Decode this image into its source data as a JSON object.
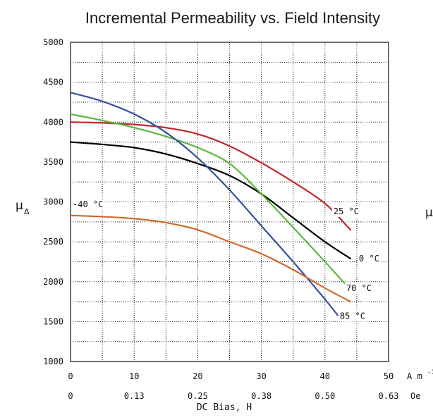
{
  "chart_data": {
    "type": "line",
    "title": "Incremental Permeability vs. Field Intensity",
    "xlabel": "DC Bias, H",
    "ylabel": "μ",
    "ylabel_sub": "Δ",
    "right_clip_text": "μ",
    "xlim": [
      0,
      50
    ],
    "ylim": [
      1000,
      5000
    ],
    "grid": true,
    "x_ticks": [
      0,
      10,
      20,
      30,
      40,
      50
    ],
    "x_ticks_oe": [
      "0",
      "0.13",
      "0.25",
      "0.38",
      "0.50",
      "0.63"
    ],
    "x_unit": "A m",
    "x_unit_sup": "-1",
    "x_unit_oe": "Oe",
    "y_ticks": [
      1000,
      1500,
      2000,
      2500,
      3000,
      3500,
      4000,
      4500,
      5000
    ],
    "series": [
      {
        "name": "25 °C",
        "color": "#c0262d",
        "x": [
          0,
          5,
          10,
          15,
          20,
          25,
          30,
          35,
          40,
          44
        ],
        "y": [
          4000,
          3990,
          3970,
          3930,
          3850,
          3700,
          3490,
          3250,
          2980,
          2650
        ]
      },
      {
        "name": "0 °C",
        "color": "#000000",
        "x": [
          0,
          5,
          10,
          15,
          20,
          25,
          30,
          35,
          40,
          44
        ],
        "y": [
          3750,
          3720,
          3680,
          3600,
          3480,
          3330,
          3100,
          2800,
          2500,
          2290
        ]
      },
      {
        "name": "70 °C",
        "color": "#5ab83a",
        "x": [
          0,
          5,
          10,
          15,
          20,
          25,
          30,
          35,
          40,
          44
        ],
        "y": [
          4100,
          4020,
          3930,
          3820,
          3680,
          3480,
          3100,
          2680,
          2250,
          1900
        ]
      },
      {
        "name": "85 °C",
        "color": "#3550a0",
        "x": [
          0,
          5,
          10,
          15,
          20,
          25,
          30,
          35,
          40,
          42
        ],
        "y": [
          4370,
          4260,
          4100,
          3870,
          3550,
          3150,
          2700,
          2250,
          1780,
          1580
        ]
      },
      {
        "name": "-40 °C",
        "color": "#d0692c",
        "x": [
          0,
          5,
          10,
          15,
          20,
          25,
          30,
          35,
          40,
          44
        ],
        "y": [
          2830,
          2815,
          2790,
          2740,
          2650,
          2500,
          2350,
          2150,
          1920,
          1750
        ]
      }
    ],
    "series_label_data_pos": {
      "25 °C": [
        41,
        2880
      ],
      "0 °C": [
        45,
        2290
      ],
      "70 °C": [
        43,
        1920
      ],
      "85 °C": [
        42,
        1570
      ],
      "-40 °C": [
        0,
        2970
      ]
    }
  }
}
